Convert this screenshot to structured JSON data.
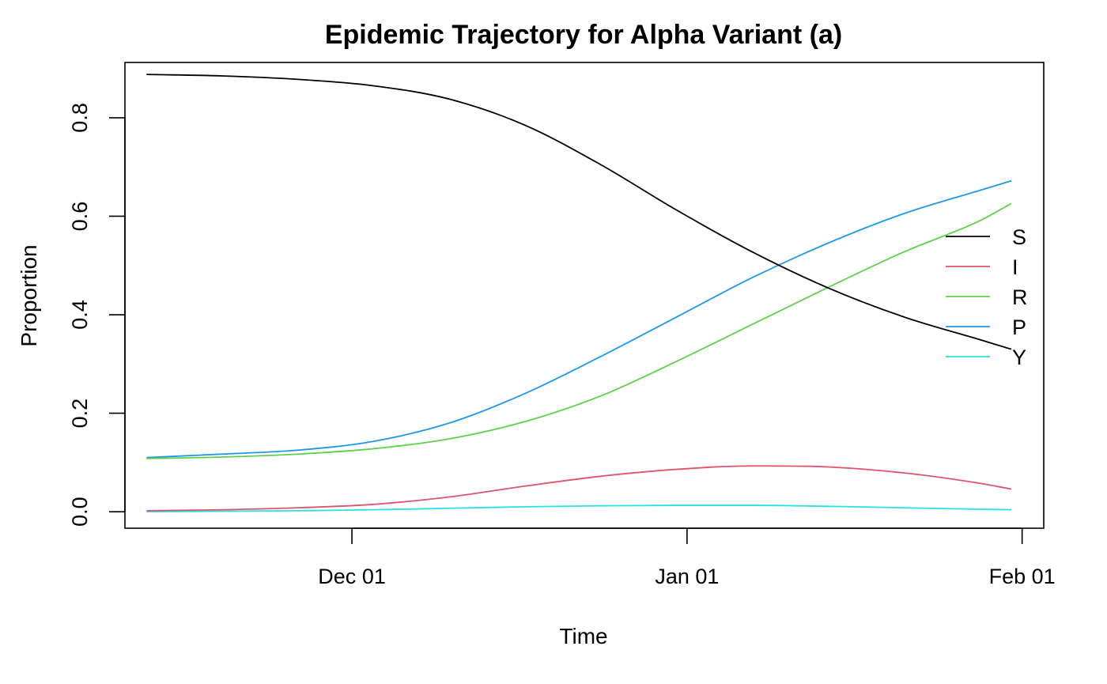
{
  "chart_data": {
    "type": "line",
    "title": "Epidemic Trajectory for Alpha Variant (a)",
    "xlabel": "Time",
    "ylabel": "Proportion",
    "x_ticks": [
      {
        "date": "2020-12-01",
        "label": "Dec 01"
      },
      {
        "date": "2021-01-01",
        "label": "Jan 01"
      },
      {
        "date": "2021-02-01",
        "label": "Feb 01"
      }
    ],
    "y_ticks": [
      {
        "value": 0.0,
        "label": "0.0"
      },
      {
        "value": 0.2,
        "label": "0.2"
      },
      {
        "value": 0.4,
        "label": "0.4"
      },
      {
        "value": 0.6,
        "label": "0.6"
      },
      {
        "value": 0.8,
        "label": "0.8"
      }
    ],
    "xlim": [
      "2020-11-10",
      "2021-02-03"
    ],
    "ylim": [
      -0.0335,
      0.9123
    ],
    "grid": false,
    "legend_position": "right",
    "x": [
      "2020-11-12",
      "2020-11-19",
      "2020-11-26",
      "2020-12-03",
      "2020-12-10",
      "2020-12-17",
      "2020-12-24",
      "2020-12-31",
      "2021-01-07",
      "2021-01-14",
      "2021-01-21",
      "2021-01-28",
      "2021-01-31"
    ],
    "series": [
      {
        "name": "S",
        "color": "#000000",
        "values": [
          0.888,
          0.885,
          0.878,
          0.865,
          0.838,
          0.785,
          0.705,
          0.613,
          0.528,
          0.455,
          0.396,
          0.35,
          0.33
        ]
      },
      {
        "name": "I",
        "color": "#DF536B",
        "values": [
          0.002,
          0.004,
          0.008,
          0.015,
          0.03,
          0.052,
          0.072,
          0.086,
          0.093,
          0.091,
          0.079,
          0.058,
          0.046
        ]
      },
      {
        "name": "R",
        "color": "#61D04F",
        "values": [
          0.108,
          0.111,
          0.117,
          0.128,
          0.148,
          0.183,
          0.235,
          0.305,
          0.38,
          0.455,
          0.527,
          0.59,
          0.626
        ]
      },
      {
        "name": "P",
        "color": "#2297E6",
        "values": [
          0.11,
          0.117,
          0.125,
          0.143,
          0.18,
          0.24,
          0.315,
          0.395,
          0.475,
          0.545,
          0.605,
          0.652,
          0.672
        ]
      },
      {
        "name": "Y",
        "color": "#28E2E5",
        "values": [
          0.0,
          0.001,
          0.002,
          0.004,
          0.007,
          0.01,
          0.012,
          0.013,
          0.013,
          0.011,
          0.008,
          0.005,
          0.004
        ]
      }
    ]
  }
}
